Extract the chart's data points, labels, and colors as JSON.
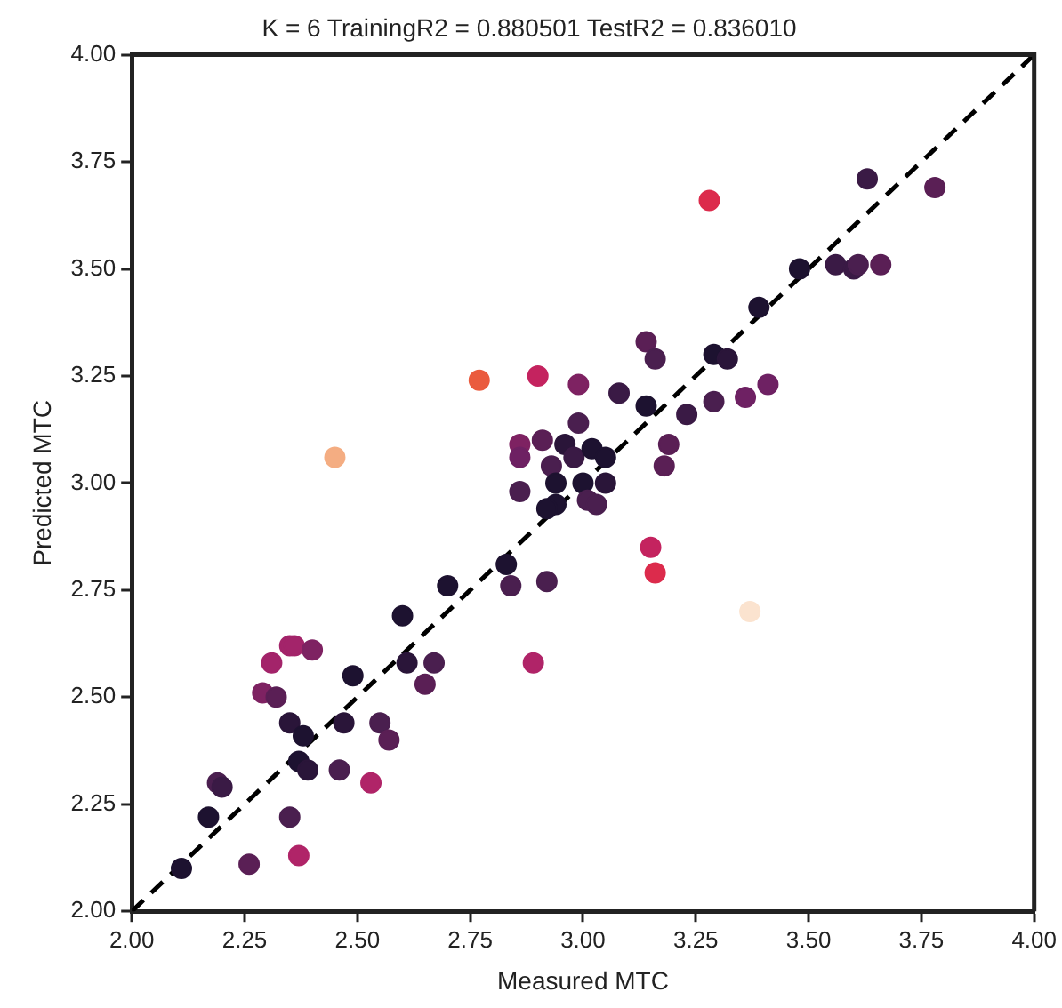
{
  "chart_data": {
    "type": "scatter",
    "title": "K = 6 TrainingR2 = 0.880501 TestR2 = 0.836010",
    "xlabel": "Measured MTC",
    "ylabel": "Predicted MTC",
    "xlim": [
      2,
      4
    ],
    "ylim": [
      2,
      4
    ],
    "xticks": [
      {
        "value": 2,
        "label": "2.00"
      },
      {
        "value": 2.25,
        "label": "2.25"
      },
      {
        "value": 2.5,
        "label": "2.50"
      },
      {
        "value": 2.75,
        "label": "2.75"
      },
      {
        "value": 3,
        "label": "3.00"
      },
      {
        "value": 3.25,
        "label": "3.25"
      },
      {
        "value": 3.5,
        "label": "3.50"
      },
      {
        "value": 3.75,
        "label": "3.75"
      },
      {
        "value": 4,
        "label": "4.00"
      }
    ],
    "yticks": [
      {
        "value": 2,
        "label": "2.00"
      },
      {
        "value": 2.25,
        "label": "2.25"
      },
      {
        "value": 2.5,
        "label": "2.50"
      },
      {
        "value": 2.75,
        "label": "2.75"
      },
      {
        "value": 3,
        "label": "3.00"
      },
      {
        "value": 3.25,
        "label": "3.25"
      },
      {
        "value": 3.5,
        "label": "3.50"
      },
      {
        "value": 3.75,
        "label": "3.75"
      },
      {
        "value": 4,
        "label": "4.00"
      }
    ],
    "grid": false,
    "legend": false,
    "series": [
      {
        "marker": "circle",
        "x": [
          2.11,
          2.26,
          2.37,
          2.35,
          2.17,
          2.19,
          2.2,
          2.37,
          2.39,
          2.46,
          2.53,
          2.35,
          2.38,
          2.47,
          2.55,
          2.57,
          2.29,
          2.32,
          2.31,
          2.35,
          2.36,
          2.4,
          2.49,
          2.61,
          2.67,
          2.65,
          2.77,
          2.9,
          2.99,
          3.08,
          3.14,
          3.16,
          3.29,
          3.32,
          3.36,
          3.29,
          3.23,
          3.14,
          2.99,
          2.86,
          2.86,
          2.91,
          2.96,
          2.98,
          3.02,
          3.05,
          2.93,
          3.19,
          3.18,
          2.86,
          2.94,
          2.94,
          2.92,
          3.0,
          3.05,
          3.01,
          3.03,
          2.83,
          2.7,
          2.84,
          2.92,
          3.15,
          3.16,
          3.37,
          2.6,
          2.89,
          2.45,
          3.28,
          3.63,
          3.78,
          3.48,
          3.56,
          3.6,
          3.61,
          3.66,
          3.39,
          3.41
        ],
        "values": [
          2.1,
          2.11,
          2.13,
          2.22,
          2.22,
          2.3,
          2.29,
          2.35,
          2.33,
          2.33,
          2.3,
          2.44,
          2.41,
          2.44,
          2.44,
          2.4,
          2.51,
          2.5,
          2.58,
          2.62,
          2.62,
          2.61,
          2.55,
          2.58,
          2.58,
          2.53,
          3.24,
          3.25,
          3.23,
          3.21,
          3.33,
          3.29,
          3.3,
          3.29,
          3.2,
          3.19,
          3.16,
          3.18,
          3.14,
          3.09,
          3.06,
          3.1,
          3.09,
          3.06,
          3.08,
          3.06,
          3.04,
          3.09,
          3.04,
          2.98,
          3.0,
          2.95,
          2.94,
          3.0,
          3.0,
          2.96,
          2.95,
          2.81,
          2.76,
          2.76,
          2.77,
          2.85,
          2.79,
          2.7,
          2.69,
          2.58,
          3.06,
          3.66,
          3.71,
          3.69,
          3.5,
          3.51,
          3.5,
          3.51,
          3.51,
          3.41,
          3.23
        ],
        "colors": [
          "#1d1230",
          "#5a1f55",
          "#b02468",
          "#4a1f4f",
          "#1d1230",
          "#4a1f4f",
          "#3a1a45",
          "#1d1230",
          "#2a1539",
          "#4a1f4f",
          "#b02468",
          "#2a1539",
          "#1d1230",
          "#2a1539",
          "#4a1f4f",
          "#5a1f55",
          "#7e2262",
          "#5a1f55",
          "#a3246a",
          "#a3246a",
          "#a3246a",
          "#7e2262",
          "#1d1230",
          "#2a1539",
          "#4a1f4f",
          "#5a1f55",
          "#ea5b3e",
          "#c4235f",
          "#7e2262",
          "#3a1a45",
          "#5a1f55",
          "#4a1f4f",
          "#1d1230",
          "#2a1539",
          "#6e2163",
          "#4a1f4f",
          "#3a1a45",
          "#1d1230",
          "#4a1f4f",
          "#7e2262",
          "#6e2163",
          "#5a1f55",
          "#2a1539",
          "#3a1a45",
          "#1d1230",
          "#1d1230",
          "#4a1f4f",
          "#5a1f55",
          "#5a1f55",
          "#4a1f4f",
          "#1d1230",
          "#1d1230",
          "#1d1230",
          "#1d1230",
          "#2a1539",
          "#4a1f4f",
          "#4a1f4f",
          "#1d1230",
          "#1d1230",
          "#4a1f4f",
          "#4a1f4f",
          "#c4235f",
          "#dc2b4c",
          "#fbe3cf",
          "#1d1230",
          "#b02468",
          "#f4ad82",
          "#dc2b4c",
          "#3a1a45",
          "#5a1f55",
          "#1d1230",
          "#3a1a45",
          "#3a1a45",
          "#4a1f4f",
          "#5a1f55",
          "#1d1230",
          "#6e2163"
        ]
      },
      {
        "type": "line",
        "x": [
          2,
          4
        ],
        "values": [
          2,
          4
        ],
        "color": "#000000",
        "line_style": "dashed",
        "marker": "none"
      }
    ]
  }
}
